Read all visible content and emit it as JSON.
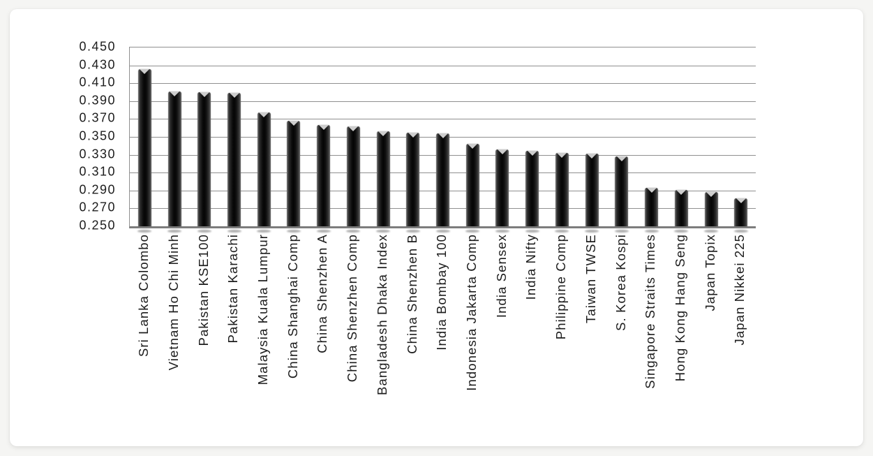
{
  "page": {
    "background_color": "#f5f5f3",
    "card_background_color": "#ffffff"
  },
  "chart_data": {
    "type": "bar",
    "title": "",
    "xlabel": "",
    "ylabel": "",
    "orientation": "vertical",
    "grid": "horizontal",
    "legend_position": "none",
    "bar_color": "#121212",
    "gridline_color": "#8f8f8f",
    "axis_color": "#7d7d7d",
    "ylim": [
      0.25,
      0.45
    ],
    "ytick_step": 0.02,
    "yticks": [
      0.45,
      0.43,
      0.41,
      0.39,
      0.37,
      0.35,
      0.33,
      0.31,
      0.29,
      0.27,
      0.25
    ],
    "ytick_labels": [
      "0.450",
      "0.430",
      "0.410",
      "0.390",
      "0.370",
      "0.350",
      "0.330",
      "0.310",
      "0.290",
      "0.270",
      "0.250"
    ],
    "categories": [
      "Sri Lanka Colombo",
      "Vietnam Ho Chi Minh",
      "Pakistan KSE100",
      "Pakistan Karachi",
      "Malaysia Kuala Lumpur",
      "China Shanghai Comp",
      "China Shenzhen A",
      "China Shenzhen Comp",
      "Bangladesh Dhaka Index",
      "China Shenzhen B",
      "India Bombay 100",
      "Indonesia Jakarta Comp",
      "India Sensex",
      "India Nifty",
      "Philippine Comp",
      "Taiwan TWSE",
      "S. Korea Kospi",
      "Singapore Straits Times",
      "Hong Kong Hang Seng",
      "Japan Topix",
      "Japan Nikkei 225"
    ],
    "values": [
      0.426,
      0.401,
      0.4,
      0.399,
      0.377,
      0.368,
      0.363,
      0.362,
      0.356,
      0.355,
      0.354,
      0.342,
      0.336,
      0.334,
      0.332,
      0.331,
      0.328,
      0.293,
      0.291,
      0.288,
      0.281
    ]
  }
}
